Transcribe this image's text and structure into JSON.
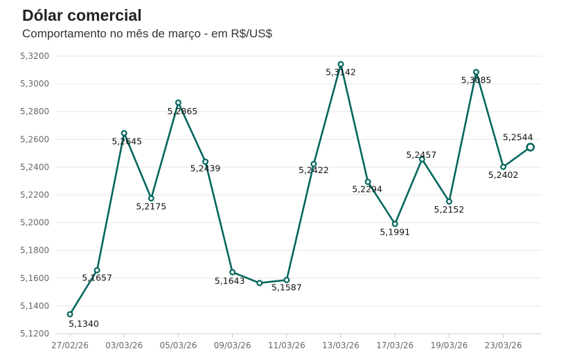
{
  "chart_data": {
    "type": "line",
    "title": "Dólar comercial",
    "subtitle": "Comportamento no mês de março - em R$/US$",
    "xlabel": "",
    "ylabel": "",
    "ylim": [
      5.12,
      5.32
    ],
    "grid": true,
    "legend": "none",
    "line_color": "#00665e",
    "yticks": [
      "5,1200",
      "5,1400",
      "5,1600",
      "5,1800",
      "5,2000",
      "5,2200",
      "5,2400",
      "5,2600",
      "5,2800",
      "5,3000",
      "5,3200"
    ],
    "xticks": [
      "27/02/26",
      "03/03/26",
      "05/03/26",
      "09/03/26",
      "11/03/26",
      "13/03/26",
      "17/03/26",
      "19/03/26",
      "23/03/26"
    ],
    "x": [
      "27/02/26",
      "02/03/26",
      "03/03/26",
      "04/03/26",
      "05/03/26",
      "06/03/26",
      "09/03/26",
      "10/03/26",
      "11/03/26",
      "12/03/26",
      "13/03/26",
      "16/03/26",
      "17/03/26",
      "18/03/26",
      "19/03/26",
      "20/03/26",
      "23/03/26",
      "24/03/26"
    ],
    "values": [
      5.134,
      5.1657,
      5.2645,
      5.2175,
      5.2865,
      5.2439,
      5.1643,
      5.1565,
      5.1587,
      5.2422,
      5.3142,
      5.2294,
      5.1991,
      5.2457,
      5.2152,
      5.3085,
      5.2402,
      5.2544
    ],
    "labels": [
      "5,1340",
      "5,1657",
      "5,2645",
      "5,2175",
      "5,2865",
      "5,2439",
      "5,1643",
      "",
      "5,1587",
      "5,2422",
      "5,3142",
      "5,2294",
      "5,1991",
      "5,2457",
      "5,2152",
      "5,3085",
      "5,2402",
      "5,2544"
    ]
  }
}
